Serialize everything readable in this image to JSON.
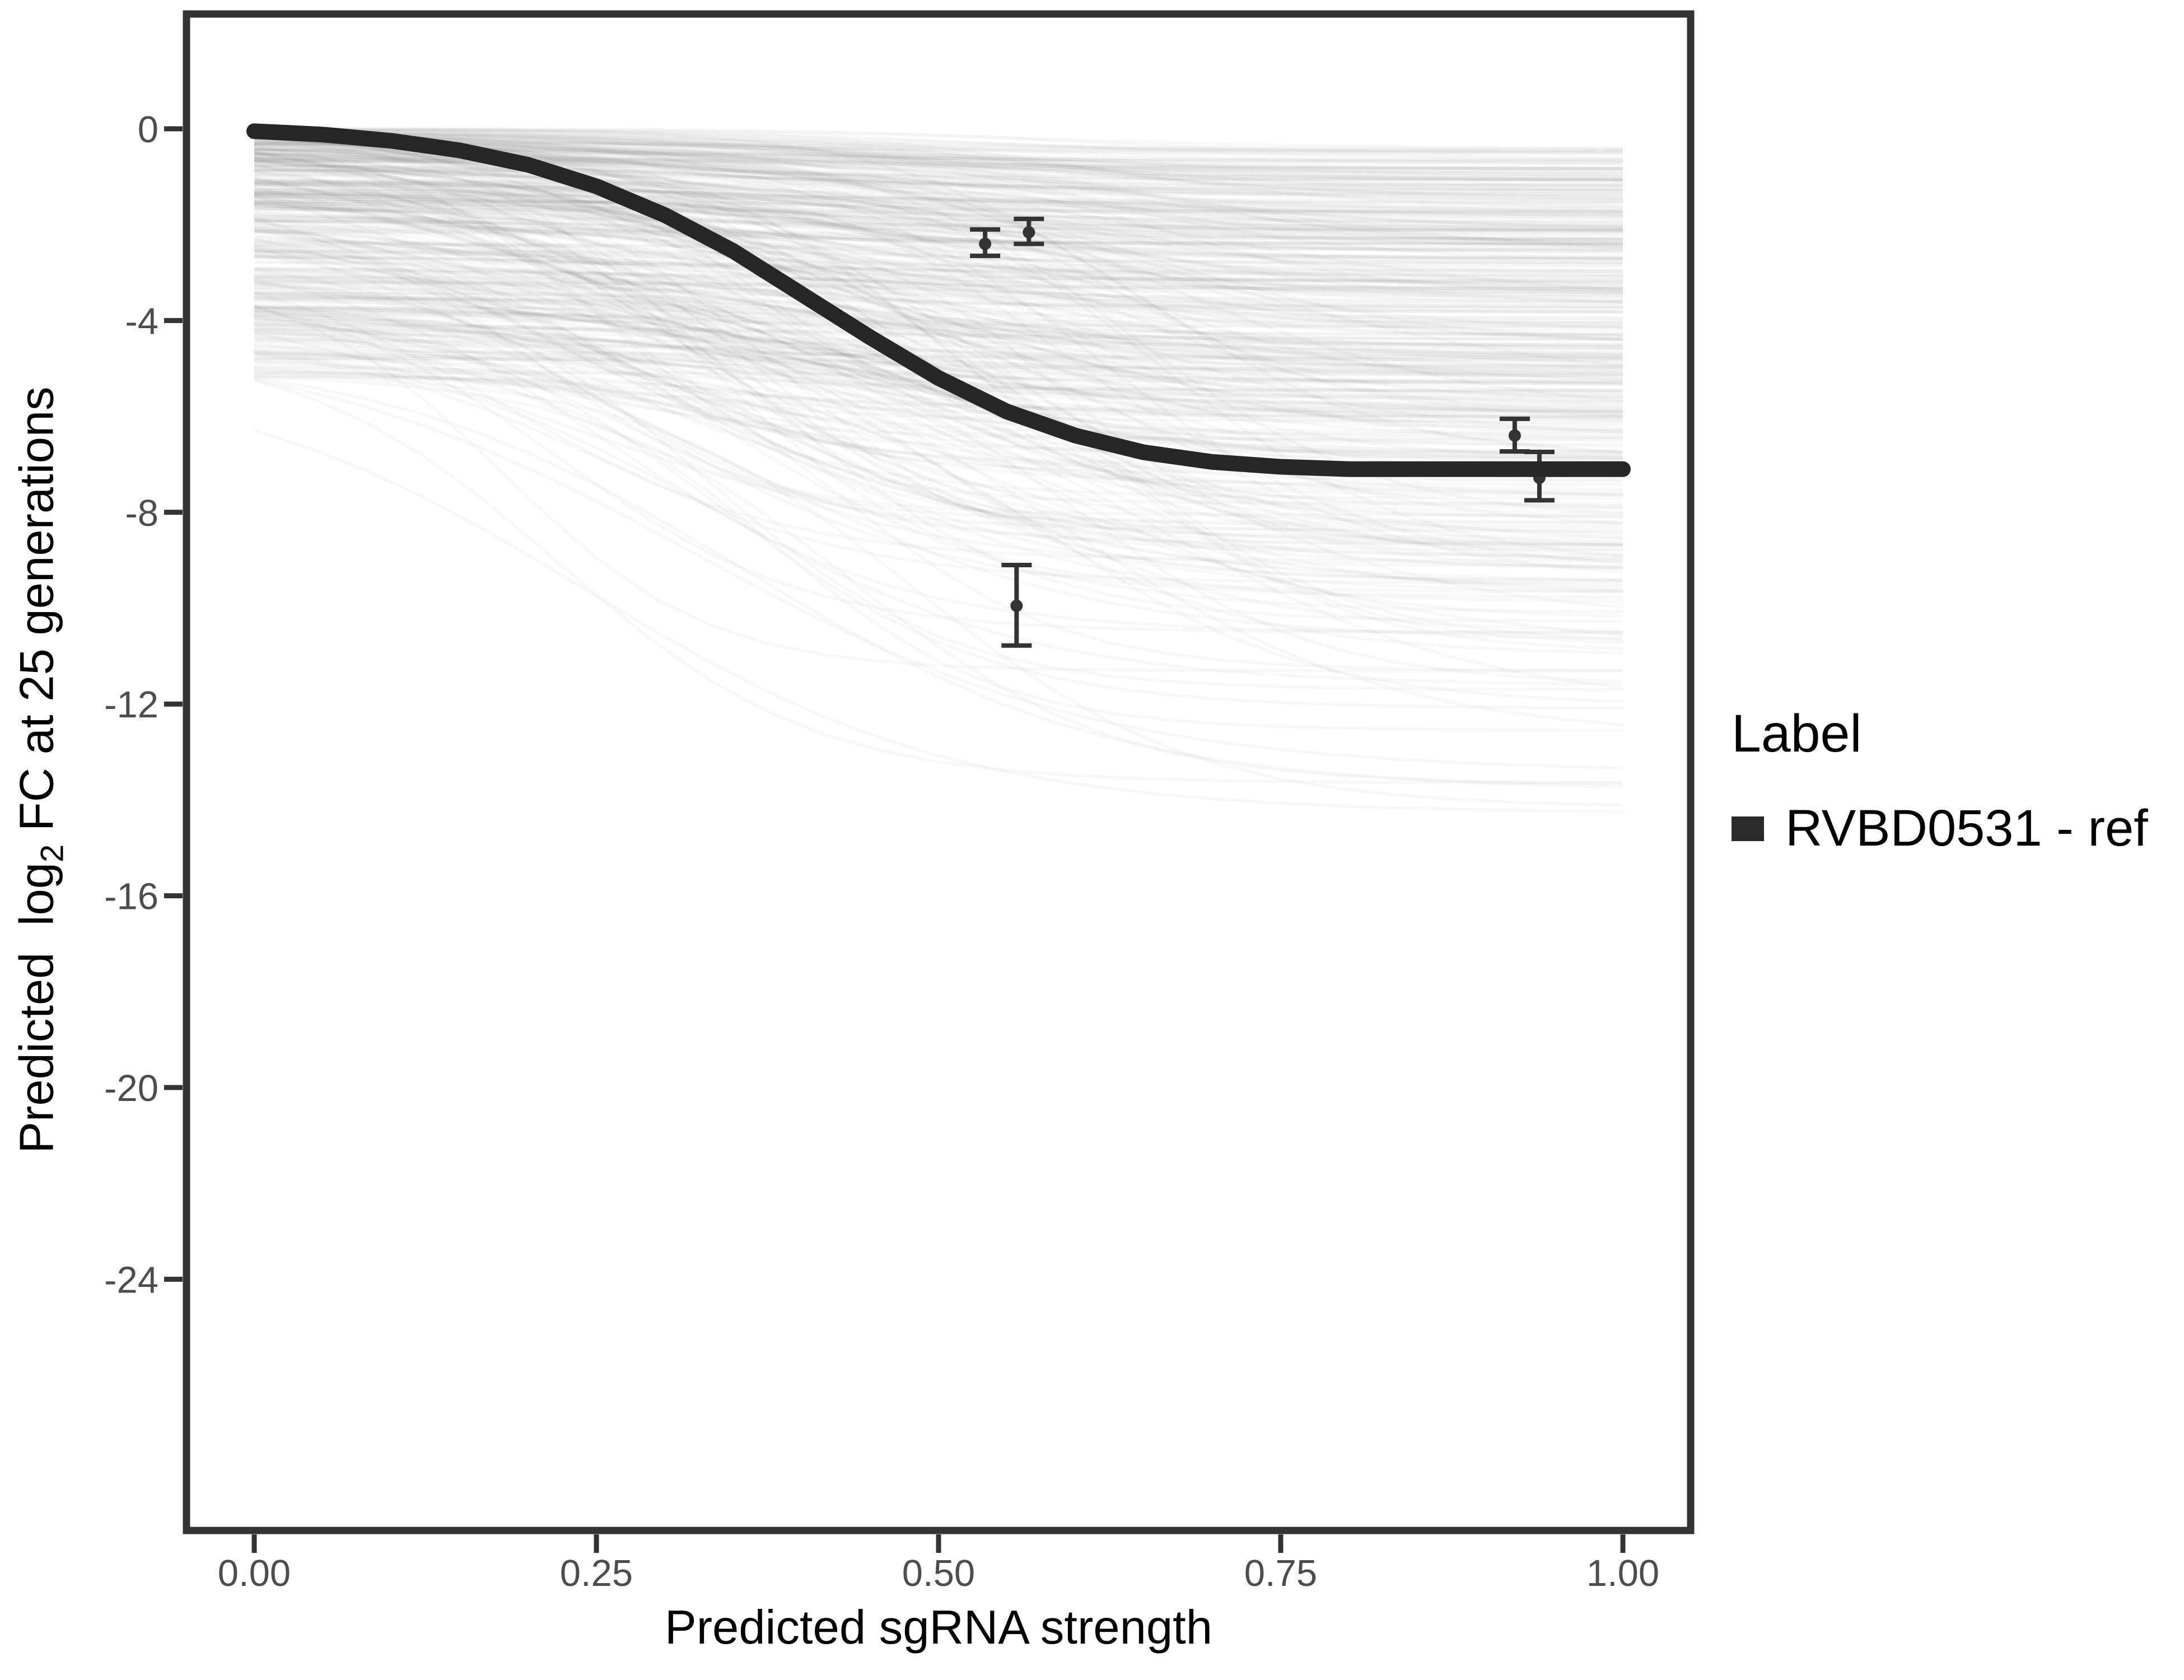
{
  "figure": {
    "background": "#ffffff",
    "panel": {
      "border_color": "#333333",
      "border_width": 13
    },
    "axis_text_color": "#4d4d4d",
    "axis_title_color": "#000000",
    "y_title": {
      "prefix": "Predicted  log",
      "sub": "2",
      "suffix": " FC at 25 generations"
    },
    "legend": {
      "title": "Label",
      "items": [
        {
          "label": "RVBD0531 - ref",
          "swatch_color": "#2a2a2a"
        }
      ]
    }
  },
  "chart_data": {
    "type": "line",
    "title": "",
    "xlabel": "Predicted sgRNA strength",
    "ylabel": "Predicted log2 FC at 25 generations",
    "xlim": [
      -0.05,
      1.05
    ],
    "ylim": [
      -29.2,
      2.4
    ],
    "grid": false,
    "legend_position": "right",
    "x_ticks": {
      "values": [
        0,
        0.25,
        0.5,
        0.75,
        1.0
      ],
      "labels": [
        "0.00",
        "0.25",
        "0.50",
        "0.75",
        "1.00"
      ]
    },
    "y_ticks": {
      "values": [
        0,
        -4,
        -8,
        -12,
        -16,
        -20,
        -24
      ],
      "labels": [
        "0",
        "-4",
        "-8",
        "-12",
        "-16",
        "-20",
        "-24"
      ]
    },
    "series": [
      {
        "name": "RVBD0531 - ref",
        "role": "fit_curve",
        "color": "#262626",
        "width": 28,
        "x": [
          0,
          0.05,
          0.1,
          0.15,
          0.2,
          0.25,
          0.3,
          0.35,
          0.4,
          0.45,
          0.5,
          0.55,
          0.6,
          0.65,
          0.7,
          0.75,
          0.8,
          0.85,
          0.9,
          0.95,
          1.0
        ],
        "y": [
          -0.05,
          -0.12,
          -0.25,
          -0.45,
          -0.75,
          -1.2,
          -1.8,
          -2.55,
          -3.45,
          -4.35,
          -5.2,
          -5.9,
          -6.4,
          -6.75,
          -6.95,
          -7.05,
          -7.1,
          -7.1,
          -7.1,
          -7.1,
          -7.1
        ]
      },
      {
        "name": "posterior_draws",
        "role": "ensemble",
        "color": "#000000",
        "opacity": 0.022,
        "width": 6,
        "count": 400,
        "seed": 20,
        "start_max": -5.2,
        "drop_min": 0.4,
        "drop_max": 9.4,
        "mid_min": 0.18,
        "mid_max": 0.68,
        "k_min": 6,
        "k_max": 14
      }
    ],
    "points": {
      "style": {
        "color": "#333333",
        "radius": 11,
        "line_width": 8,
        "cap_half_width": 27
      },
      "data": [
        {
          "x": 0.534,
          "y": -2.4,
          "ymin": -2.65,
          "ymax": -2.1
        },
        {
          "x": 0.566,
          "y": -2.16,
          "ymin": -2.4,
          "ymax": -1.88
        },
        {
          "x": 0.557,
          "y": -9.95,
          "ymin": -10.78,
          "ymax": -9.1
        },
        {
          "x": 0.921,
          "y": -6.4,
          "ymin": -6.73,
          "ymax": -6.05
        },
        {
          "x": 0.939,
          "y": -7.28,
          "ymin": -7.75,
          "ymax": -6.74
        }
      ]
    }
  }
}
